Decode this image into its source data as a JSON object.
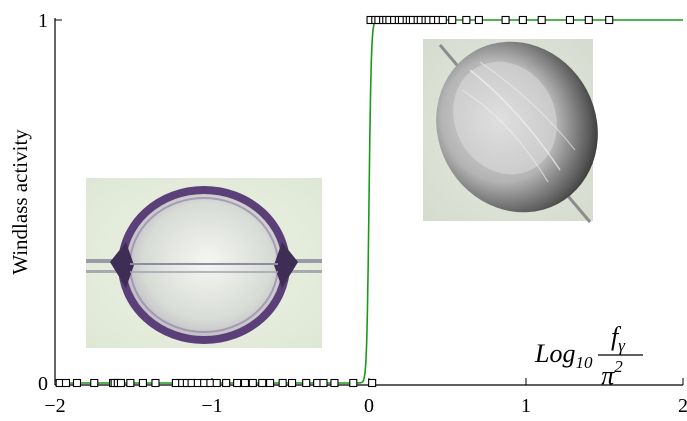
{
  "chart_data": {
    "type": "scatter",
    "xlim": [
      -2,
      2
    ],
    "ylim": [
      0,
      1
    ],
    "x_ticks": [
      -2,
      -1,
      0,
      1,
      2
    ],
    "x_tick_labels": [
      "−2",
      "−1",
      "0",
      "1",
      "2"
    ],
    "y_ticks": [
      0,
      1
    ],
    "y_tick_labels": [
      "0",
      "1"
    ],
    "ylabel": "Windlass activity",
    "xlabel": {
      "prefix": "Log",
      "subscript": "10",
      "numerator": "f",
      "numerator_subscript": "γ",
      "denominator": "π",
      "denominator_superscript": "2"
    },
    "series": [
      {
        "marker": "square",
        "color": "#000000",
        "points": [
          [
            -1.97,
            0
          ],
          [
            -1.93,
            0
          ],
          [
            -1.86,
            0
          ],
          [
            -1.75,
            0
          ],
          [
            -1.63,
            0
          ],
          [
            -1.62,
            0
          ],
          [
            -1.6,
            0
          ],
          [
            -1.58,
            0
          ],
          [
            -1.52,
            0
          ],
          [
            -1.44,
            0
          ],
          [
            -1.36,
            0
          ],
          [
            -1.23,
            0
          ],
          [
            -1.19,
            0
          ],
          [
            -1.16,
            0
          ],
          [
            -1.13,
            0
          ],
          [
            -1.09,
            0
          ],
          [
            -1.05,
            0
          ],
          [
            -1.01,
            0
          ],
          [
            -0.97,
            0
          ],
          [
            -0.91,
            0
          ],
          [
            -0.84,
            0
          ],
          [
            -0.79,
            0
          ],
          [
            -0.74,
            0
          ],
          [
            -0.68,
            0
          ],
          [
            -0.63,
            0
          ],
          [
            -0.55,
            0
          ],
          [
            -0.49,
            0
          ],
          [
            -0.4,
            0
          ],
          [
            -0.33,
            0
          ],
          [
            -0.29,
            0
          ],
          [
            -0.22,
            0
          ],
          [
            -0.1,
            0
          ],
          [
            0.02,
            0
          ],
          [
            0.01,
            1
          ],
          [
            0.04,
            1
          ],
          [
            0.06,
            1
          ],
          [
            0.09,
            1
          ],
          [
            0.11,
            1
          ],
          [
            0.13,
            1
          ],
          [
            0.16,
            1
          ],
          [
            0.19,
            1
          ],
          [
            0.21,
            1
          ],
          [
            0.24,
            1
          ],
          [
            0.26,
            1
          ],
          [
            0.28,
            1
          ],
          [
            0.31,
            1
          ],
          [
            0.33,
            1
          ],
          [
            0.36,
            1
          ],
          [
            0.38,
            1
          ],
          [
            0.41,
            1
          ],
          [
            0.44,
            1
          ],
          [
            0.47,
            1
          ],
          [
            0.53,
            1
          ],
          [
            0.62,
            1
          ],
          [
            0.7,
            1
          ],
          [
            0.87,
            1
          ],
          [
            0.98,
            1
          ],
          [
            1.1,
            1
          ],
          [
            1.28,
            1
          ],
          [
            1.4,
            1
          ],
          [
            1.53,
            1
          ]
        ]
      },
      {
        "type": "line",
        "color": "#1a9a1a",
        "model": "sigmoid",
        "center": 0,
        "steepness": 140
      }
    ],
    "grid": false,
    "insets": [
      {
        "name": "droplet-inset-left",
        "description_state": "off"
      },
      {
        "name": "droplet-inset-right",
        "description_state": "on"
      }
    ]
  }
}
